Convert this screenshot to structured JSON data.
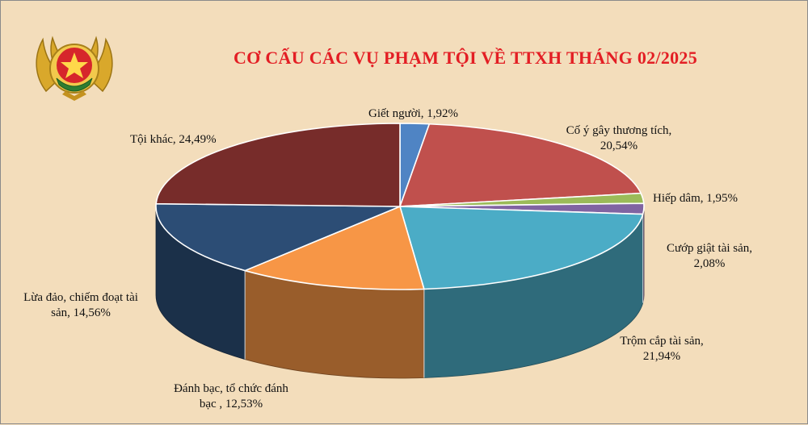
{
  "title": "CƠ CẤU CÁC VỤ PHẠM TỘI VỀ TTXH THÁNG 02/2025",
  "chart_data": {
    "type": "pie",
    "title": "CƠ CẤU CÁC VỤ PHẠM TỘI VỀ TTXH THÁNG 02/2025",
    "unit": "%",
    "slices": [
      {
        "label_lines": [
          "Giết người, 1,92%"
        ],
        "value": 1.92,
        "color": "#4f84c4"
      },
      {
        "label_lines": [
          "Cố ý gây thương tích,",
          "20,54%"
        ],
        "value": 20.54,
        "color": "#c0504d"
      },
      {
        "label_lines": [
          "Hiếp dâm, 1,95%"
        ],
        "value": 1.95,
        "color": "#9bbb59"
      },
      {
        "label_lines": [
          "Cướp giật tài sản,",
          "2,08%"
        ],
        "value": 2.08,
        "color": "#8064a2"
      },
      {
        "label_lines": [
          "Trộm  cắp tài sản,",
          "21,94%"
        ],
        "value": 21.94,
        "color": "#4bacc6"
      },
      {
        "label_lines": [
          "Đánh bạc, tổ chức đánh",
          "bạc , 12,53%"
        ],
        "value": 12.53,
        "color": "#f79646"
      },
      {
        "label_lines": [
          "Lừa đảo, chiếm đoạt tài",
          "sản, 14,56%"
        ],
        "value": 14.56,
        "color": "#2c4d75"
      },
      {
        "label_lines": [
          "Tội khác, 24,49%"
        ],
        "value": 24.49,
        "color": "#772c2a"
      }
    ]
  }
}
